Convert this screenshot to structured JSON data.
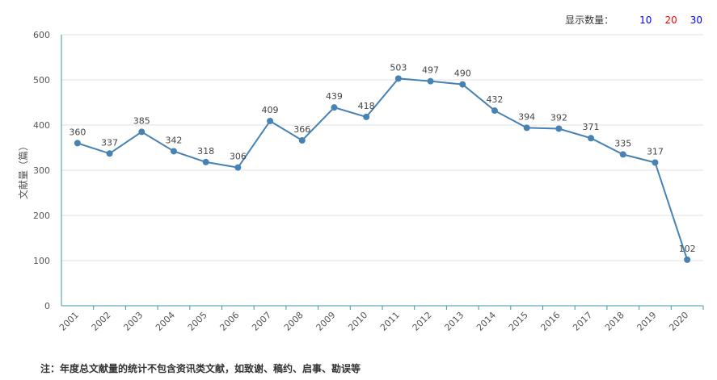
{
  "controls": {
    "label": "显示数量：",
    "options": [
      {
        "text": "10",
        "color": "#0000ff"
      },
      {
        "text": "20",
        "color": "#ff0000"
      },
      {
        "text": "30",
        "color": "#0000ff"
      }
    ]
  },
  "footnote": "注：年度总文献量的统计不包含资讯类文献，如致谢、稿约、启事、勘误等",
  "chart_data": {
    "type": "line",
    "ylabel": "文献量（篇）",
    "ylim": [
      0,
      600
    ],
    "yticks": [
      0,
      100,
      200,
      300,
      400,
      500,
      600
    ],
    "categories": [
      "2001",
      "2002",
      "2003",
      "2004",
      "2005",
      "2006",
      "2007",
      "2008",
      "2009",
      "2010",
      "2011",
      "2012",
      "2013",
      "2014",
      "2015",
      "2016",
      "2017",
      "2018",
      "2019",
      "2020"
    ],
    "series": [
      {
        "values": [
          360,
          337,
          385,
          342,
          318,
          306,
          409,
          366,
          439,
          418,
          503,
          497,
          490,
          432,
          394,
          392,
          371,
          335,
          317,
          102
        ]
      }
    ],
    "line_color": "#4682b4",
    "grid": true
  }
}
